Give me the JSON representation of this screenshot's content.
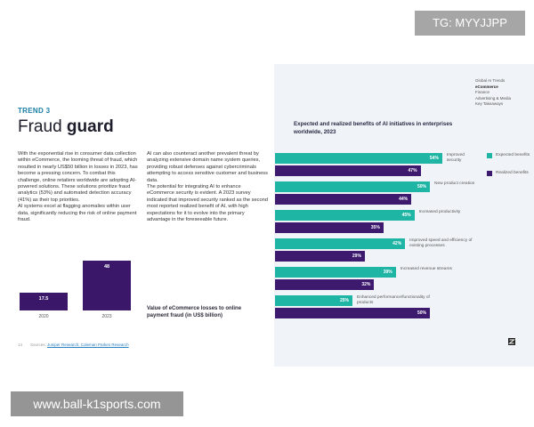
{
  "trend_label": "TREND 3",
  "title_light": "Fraud",
  "title_bold": "guard",
  "column_1": [
    "With the exponential rise in consumer data collection within eCommerce, the looming threat of fraud, which resulted in nearly US$50 billion in losses in 2023, has become a pressing concern. To combat this challenge, online retailers worldwide are adopting AI-powered solutions. These solutions prioritize fraud analytics (53%) and automated detection accuracy (41%) as their top priorities.",
    "AI systems excel at flagging anomalies within user data, significantly reducing the risk of online payment fraud."
  ],
  "column_2": [
    "AI can also counteract another prevalent threat by analyzing extensive domain name system queries, providing robust defenses against cybercriminals attempting to access sensitive customer and business data.",
    "The potential for integrating AI to enhance eCommerce security is evident. A 2023 survey indicated that improved security ranked as the second most reported realized benefit of AI, with high expectations for it to evolve into the primary advantage in the foreseeable future."
  ],
  "page_number": "14",
  "sources_prefix": "Sources:",
  "sources": "Juniper Research; Coleman Parkes Research",
  "nav": [
    "Global AI Trends",
    "eCommerce",
    "Finance",
    "Advertising & Media",
    "Key Takeaways"
  ],
  "watermarks": [
    "TG: MYYJJPP",
    "www.ball-k1sports.com"
  ],
  "chart_data": [
    {
      "type": "bar",
      "title": "Value of eCommerce losses to online payment fraud (in US$ billion)",
      "categories": [
        "2020",
        "2023"
      ],
      "values": [
        17.5,
        48
      ],
      "color": "#3b1769"
    },
    {
      "type": "hbar",
      "title": "Expected and realized benefits of AI initiatives in enterprises worldwide, 2023",
      "categories": [
        "Improved security",
        "New product creation",
        "Increased productivity",
        "Improved speed and efficiency of existing processes",
        "Increased revenue streams",
        "Enhanced performance/functionality of products"
      ],
      "series": [
        {
          "name": "Expected benefits",
          "color": "#1fb5a5",
          "values": [
            54,
            50,
            45,
            42,
            39,
            25
          ],
          "value_labels": [
            "54%",
            "50%",
            "45%",
            "42%",
            "39%",
            "25%"
          ]
        },
        {
          "name": "Realized benefits",
          "color": "#3d1a6e",
          "values": [
            47,
            44,
            35,
            29,
            32,
            50
          ],
          "value_labels": [
            "47%",
            "44%",
            "35%",
            "29%",
            "32%",
            "50%"
          ]
        }
      ]
    }
  ]
}
